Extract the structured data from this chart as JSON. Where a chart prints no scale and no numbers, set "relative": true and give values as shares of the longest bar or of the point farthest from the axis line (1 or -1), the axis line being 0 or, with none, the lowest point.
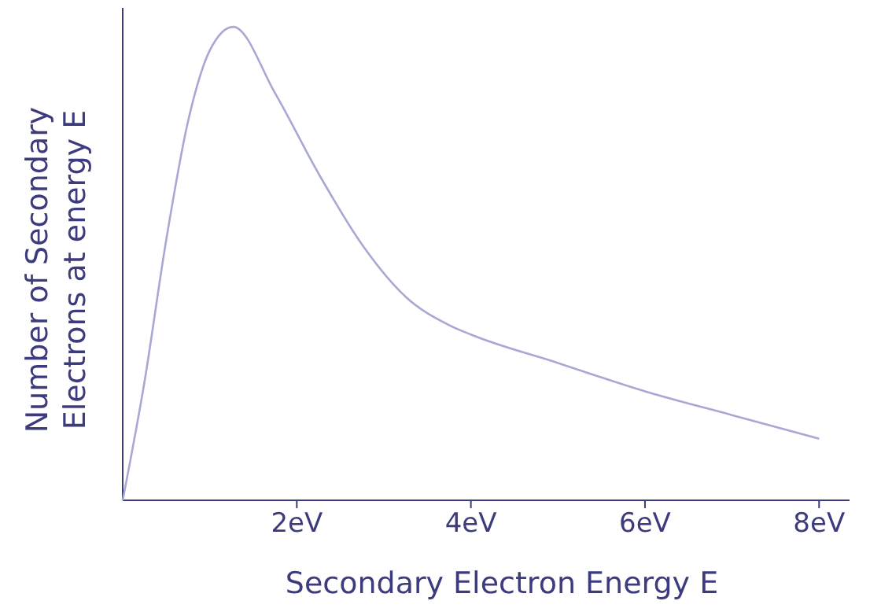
{
  "chart_data": {
    "type": "line",
    "relative": true,
    "xlabel": "Secondary Electron Energy E",
    "ylabel": "Number of Secondary Electrons at energy E",
    "x": [
      0,
      0.25,
      0.5,
      0.75,
      1.0,
      1.27,
      1.75,
      2.25,
      2.75,
      3.25,
      3.75,
      4,
      5,
      6,
      7,
      8
    ],
    "series": [
      {
        "color": "#a8a8d4",
        "values": [
          0,
          0.25,
          0.55,
          0.8,
          0.95,
          1.0,
          0.86,
          0.69,
          0.54,
          0.43,
          0.37,
          0.35,
          0.29,
          0.23,
          0.18,
          0.13
        ]
      }
    ],
    "xlim": [
      0,
      8.35
    ],
    "xticks": [
      {
        "value": 2,
        "label": "2eV"
      },
      {
        "value": 4,
        "label": "4eV"
      },
      {
        "value": 6,
        "label": "6eV"
      },
      {
        "value": 8,
        "label": "8eV"
      }
    ],
    "grid": false,
    "marker": "none",
    "line_style": "solid"
  }
}
